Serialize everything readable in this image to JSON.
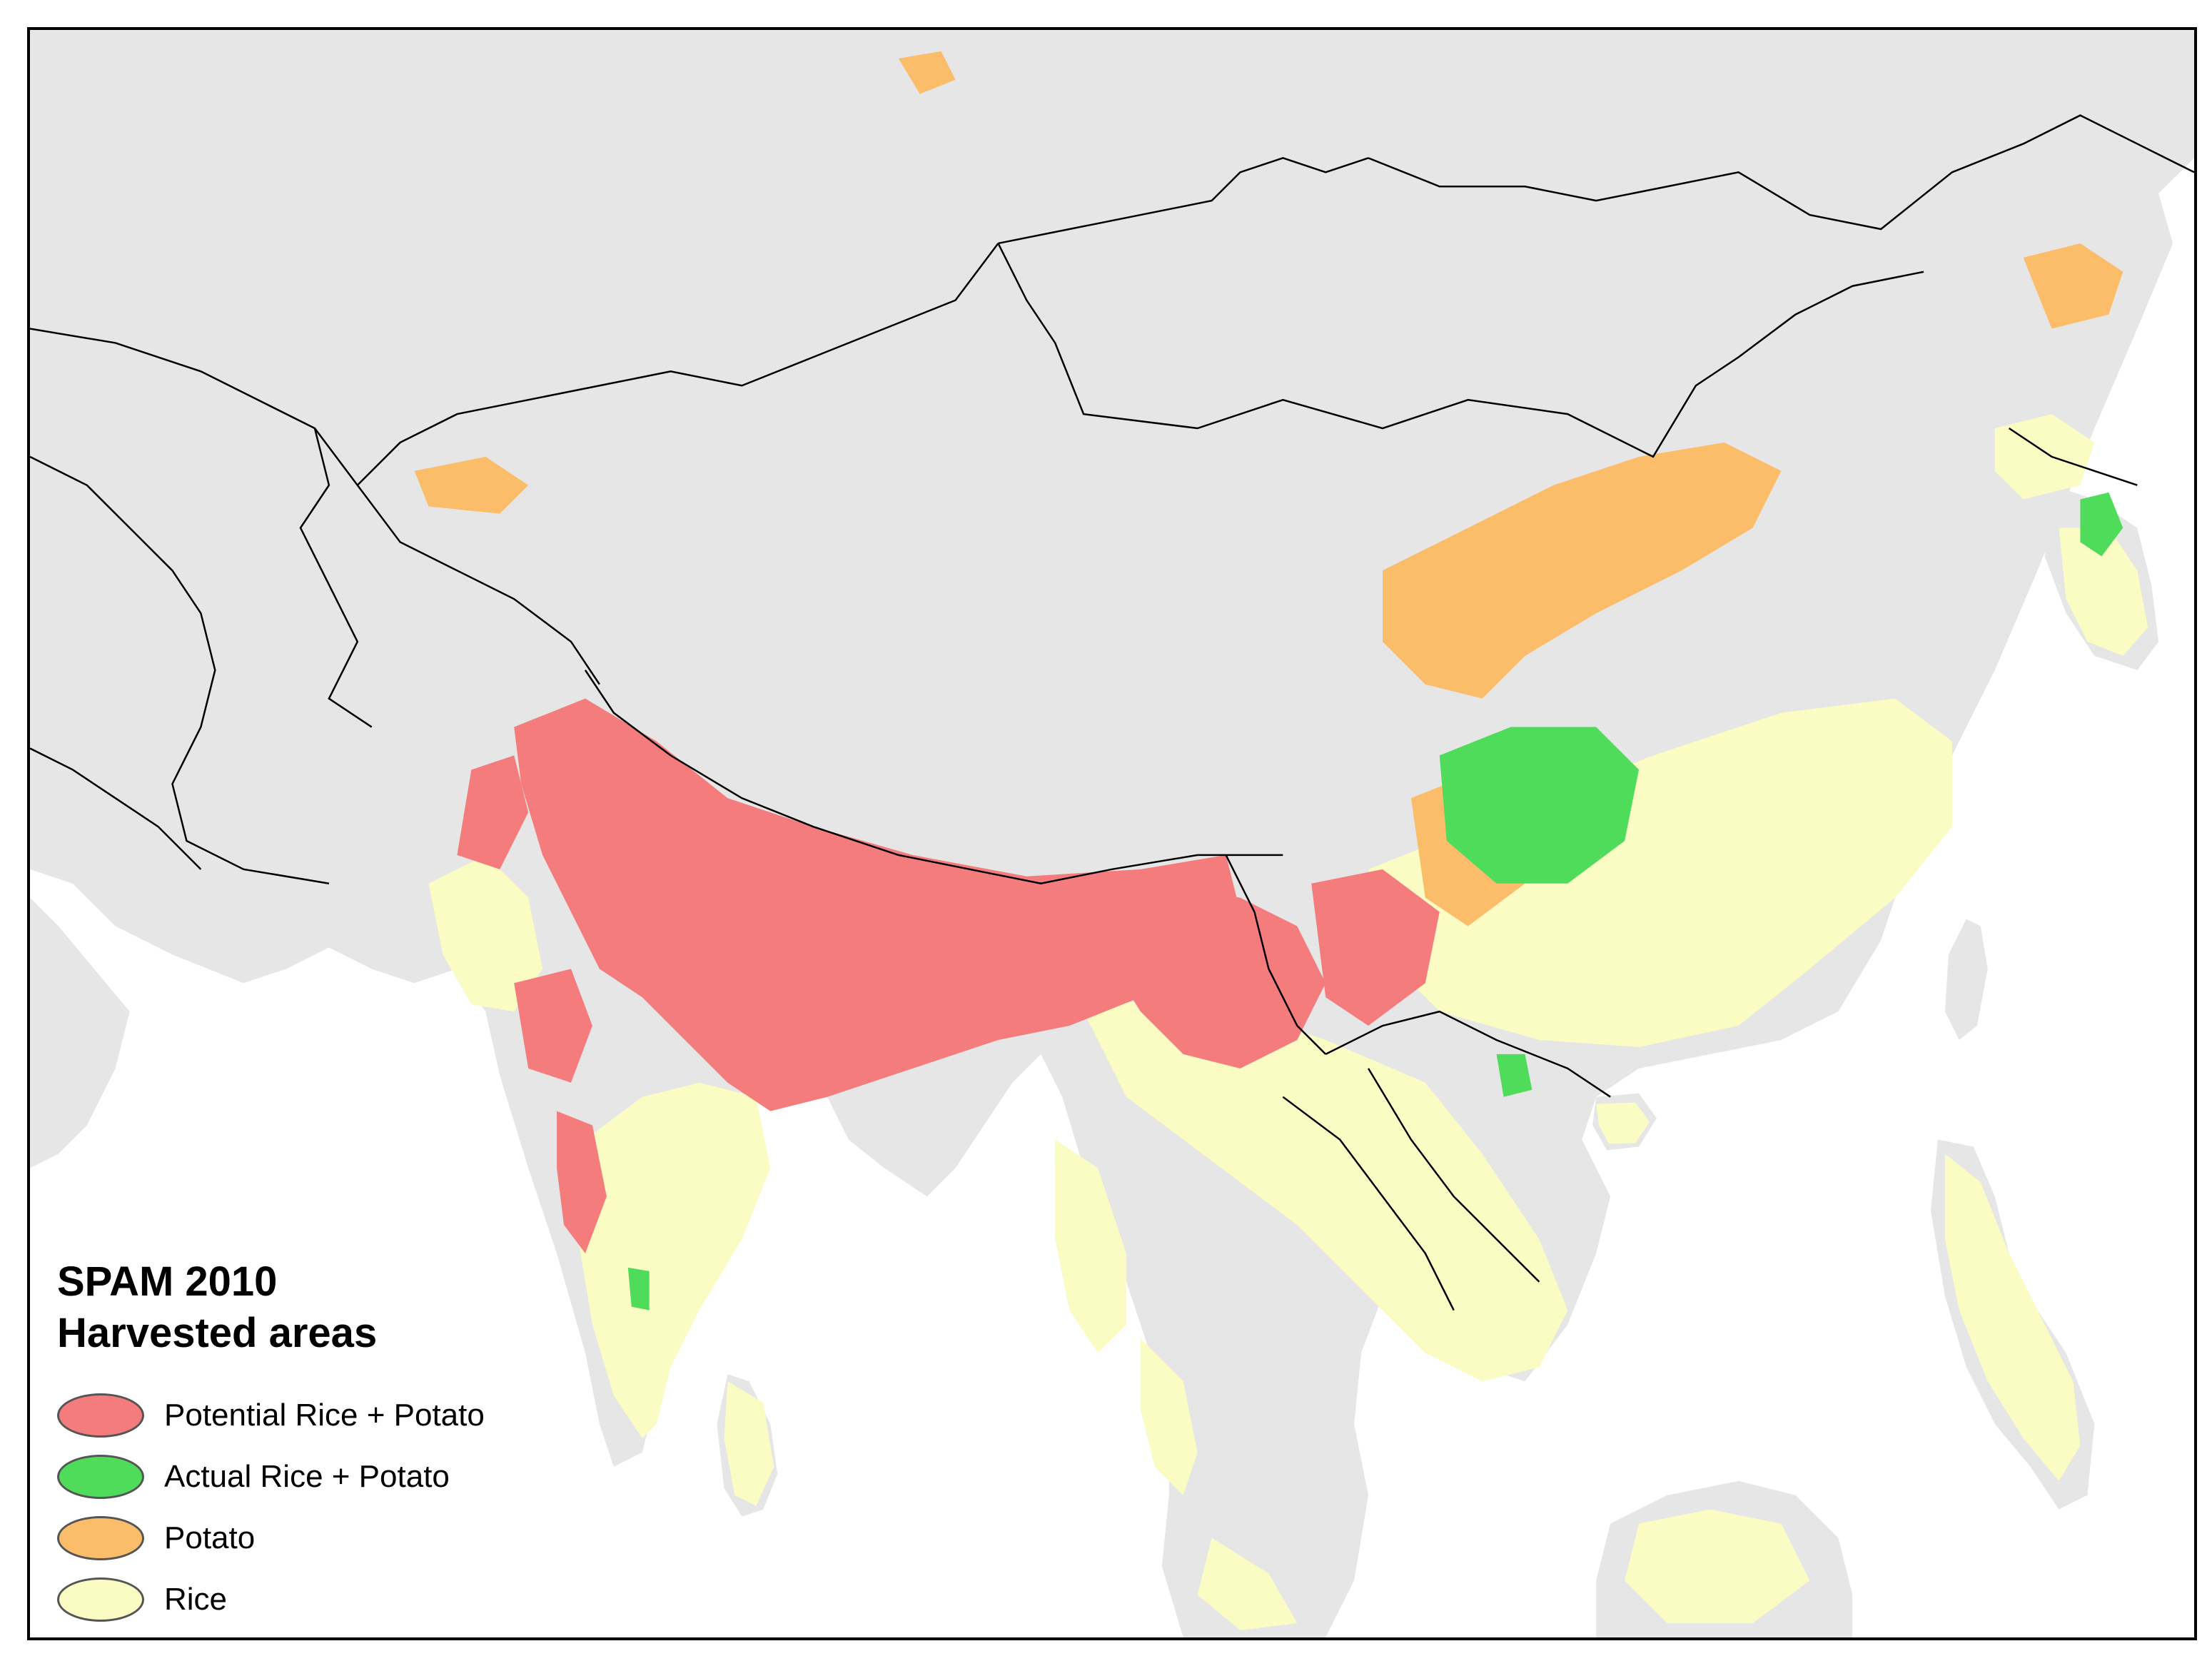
{
  "legend": {
    "title_line1": "SPAM 2010",
    "title_line2": "Harvested areas",
    "items": [
      {
        "label": "Potential Rice + Potato",
        "color": "#f47c7c"
      },
      {
        "label": "Actual Rice + Potato",
        "color": "#4fdc5a"
      },
      {
        "label": "Potato",
        "color": "#fbbd6a"
      },
      {
        "label": "Rice",
        "color": "#fbfbc4"
      }
    ]
  },
  "map": {
    "land_color": "#e6e6e6",
    "water_color": "#ffffff",
    "border_color": "#000000"
  }
}
